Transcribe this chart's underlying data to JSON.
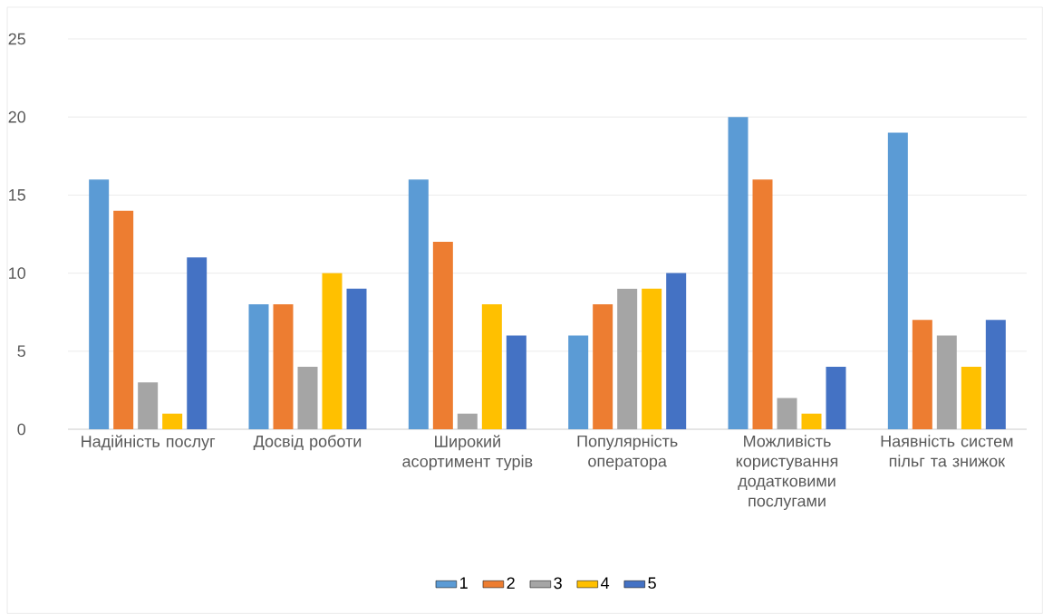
{
  "chart_data": {
    "type": "bar",
    "categories": [
      "Надійність послуг",
      "Досвід роботи",
      "Широкий асортимент турів",
      "Популярність оператора",
      "Можливість користування додатковими послугами",
      "Наявність систем пільг та знижок"
    ],
    "series": [
      {
        "name": "1",
        "color": "#5b9bd5",
        "values": [
          16,
          8,
          16,
          6,
          20,
          19
        ]
      },
      {
        "name": "2",
        "color": "#ed7d31",
        "values": [
          14,
          8,
          12,
          8,
          16,
          7
        ]
      },
      {
        "name": "3",
        "color": "#a5a5a5",
        "values": [
          3,
          4,
          1,
          9,
          2,
          6
        ]
      },
      {
        "name": "4",
        "color": "#ffc000",
        "values": [
          1,
          10,
          8,
          9,
          1,
          4
        ]
      },
      {
        "name": "5",
        "color": "#4472c4",
        "values": [
          11,
          9,
          6,
          10,
          4,
          7
        ]
      }
    ],
    "ylim": [
      0,
      25
    ],
    "yticks": [
      0,
      5,
      10,
      15,
      20,
      25
    ],
    "grid": "y",
    "legend": "bottom"
  }
}
